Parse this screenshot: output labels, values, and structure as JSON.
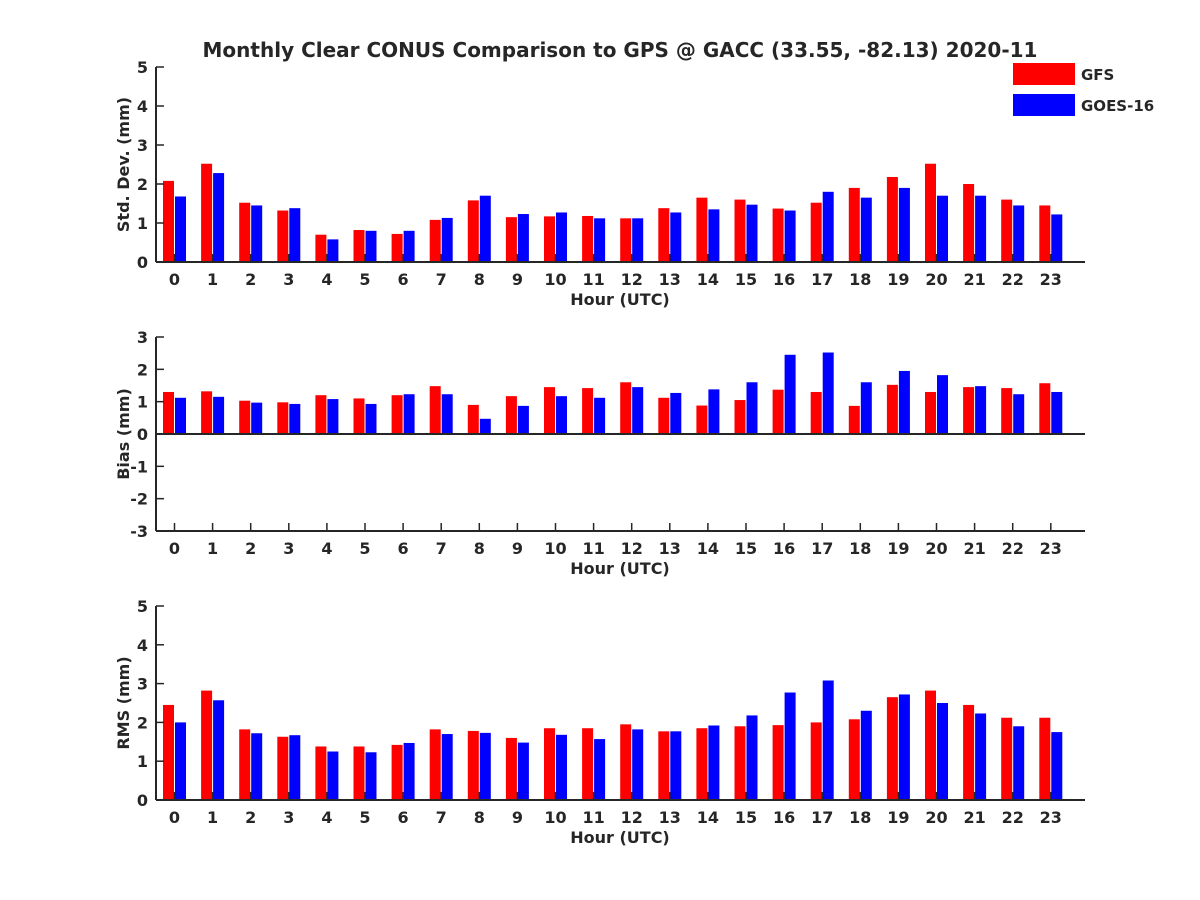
{
  "chart_data": {
    "type": "bar",
    "title": "Monthly Clear CONUS Comparison to GPS @ GACC (33.55, -82.13) 2020-11",
    "legend": {
      "placement": "top-right",
      "entries": [
        {
          "name": "GFS",
          "color": "#ff0000"
        },
        {
          "name": "GOES-16",
          "color": "#0000ff"
        }
      ]
    },
    "categories": [
      "0",
      "1",
      "2",
      "3",
      "4",
      "5",
      "6",
      "7",
      "8",
      "9",
      "10",
      "11",
      "12",
      "13",
      "14",
      "15",
      "16",
      "17",
      "18",
      "19",
      "20",
      "21",
      "22",
      "23"
    ],
    "panels": [
      {
        "id": "std",
        "ylabel": "Std. Dev. (mm)",
        "xlabel": "Hour (UTC)",
        "ylim": [
          0,
          5
        ],
        "yticks": [
          0,
          1,
          2,
          3,
          4,
          5
        ],
        "series": [
          {
            "name": "GFS",
            "values": [
              2.08,
              2.52,
              1.52,
              1.32,
              0.7,
              0.82,
              0.72,
              1.08,
              1.58,
              1.15,
              1.17,
              1.18,
              1.12,
              1.38,
              1.65,
              1.6,
              1.37,
              1.52,
              1.9,
              2.18,
              2.52,
              2.0,
              1.6,
              1.45
            ]
          },
          {
            "name": "GOES-16",
            "values": [
              1.68,
              2.28,
              1.45,
              1.38,
              0.58,
              0.8,
              0.8,
              1.13,
              1.7,
              1.23,
              1.27,
              1.12,
              1.12,
              1.27,
              1.35,
              1.47,
              1.32,
              1.8,
              1.65,
              1.9,
              1.7,
              1.7,
              1.45,
              1.22
            ]
          }
        ]
      },
      {
        "id": "bias",
        "ylabel": "Bias (mm)",
        "xlabel": "Hour (UTC)",
        "ylim": [
          -3,
          3
        ],
        "yticks": [
          -3,
          -2,
          -1,
          0,
          1,
          2,
          3
        ],
        "series": [
          {
            "name": "GFS",
            "values": [
              1.3,
              1.32,
              1.03,
              0.98,
              1.2,
              1.1,
              1.2,
              1.48,
              0.9,
              1.17,
              1.45,
              1.42,
              1.6,
              1.12,
              0.88,
              1.05,
              1.37,
              1.3,
              0.87,
              1.52,
              1.3,
              1.45,
              1.42,
              1.57
            ]
          },
          {
            "name": "GOES-16",
            "values": [
              1.12,
              1.15,
              0.97,
              0.93,
              1.08,
              0.93,
              1.23,
              1.23,
              0.47,
              0.87,
              1.17,
              1.12,
              1.45,
              1.27,
              1.38,
              1.6,
              2.45,
              2.52,
              1.6,
              1.95,
              1.82,
              1.48,
              1.23,
              1.3
            ]
          }
        ]
      },
      {
        "id": "rms",
        "ylabel": "RMS (mm)",
        "xlabel": "Hour (UTC)",
        "ylim": [
          0,
          5
        ],
        "yticks": [
          0,
          1,
          2,
          3,
          4,
          5
        ],
        "series": [
          {
            "name": "GFS",
            "values": [
              2.45,
              2.82,
              1.82,
              1.63,
              1.38,
              1.38,
              1.42,
              1.82,
              1.78,
              1.6,
              1.85,
              1.85,
              1.95,
              1.77,
              1.85,
              1.9,
              1.93,
              2.0,
              2.08,
              2.65,
              2.82,
              2.45,
              2.12,
              2.12
            ]
          },
          {
            "name": "GOES-16",
            "values": [
              2.0,
              2.57,
              1.72,
              1.67,
              1.25,
              1.23,
              1.47,
              1.7,
              1.73,
              1.48,
              1.68,
              1.57,
              1.82,
              1.77,
              1.92,
              2.18,
              2.77,
              3.08,
              2.3,
              2.72,
              2.5,
              2.23,
              1.9,
              1.75
            ]
          }
        ]
      }
    ]
  }
}
